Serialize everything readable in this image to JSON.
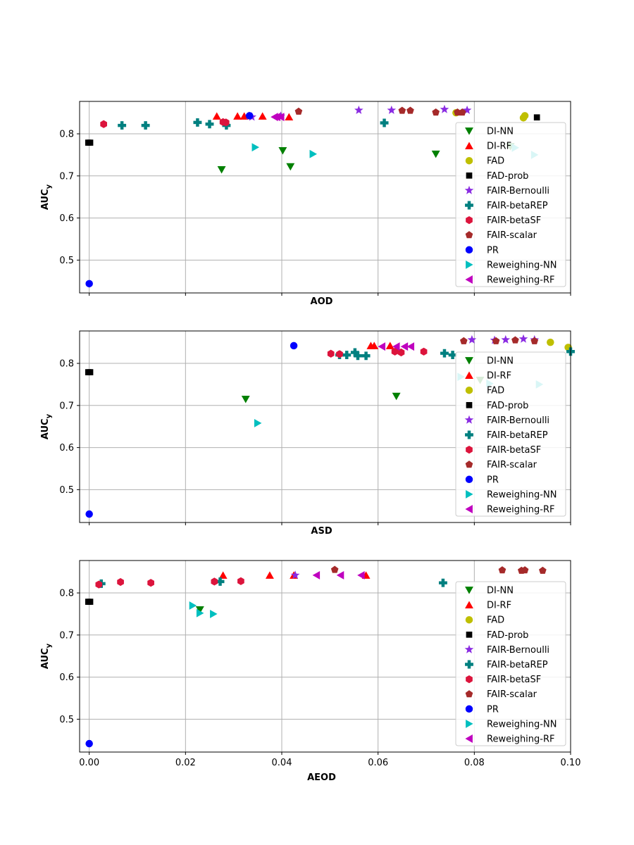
{
  "legend_entries": [
    {
      "name": "DI-NN",
      "color": "#008000",
      "marker": "triangle-down-icon"
    },
    {
      "name": "DI-RF",
      "color": "#ff0000",
      "marker": "triangle-up-icon"
    },
    {
      "name": "FAD",
      "color": "#bfbf00",
      "marker": "circle-icon"
    },
    {
      "name": "FAD-prob",
      "color": "#000000",
      "marker": "square-icon"
    },
    {
      "name": "FAIR-Bernoulli",
      "color": "#8a2be2",
      "marker": "star-icon"
    },
    {
      "name": "FAIR-betaREP",
      "color": "#008080",
      "marker": "plus-icon"
    },
    {
      "name": "FAIR-betaSF",
      "color": "#dc143c",
      "marker": "hexagon-icon"
    },
    {
      "name": "FAIR-scalar",
      "color": "#a52a2a",
      "marker": "pentagon-icon"
    },
    {
      "name": "PR",
      "color": "#0000ff",
      "marker": "circle-icon"
    },
    {
      "name": "Reweighing-NN",
      "color": "#00bfbf",
      "marker": "triangle-right-icon"
    },
    {
      "name": "Reweighing-RF",
      "color": "#bf00bf",
      "marker": "triangle-left-icon"
    }
  ],
  "chart_data": [
    {
      "type": "scatter",
      "title": "",
      "xlabel": "AOD",
      "ylabel": "AUC_y",
      "xlim": [
        -0.002,
        0.1
      ],
      "ylim": [
        0.422,
        0.877
      ],
      "xticks": [
        "0.00",
        "0.02",
        "0.04",
        "0.06",
        "0.08",
        "0.10"
      ],
      "xtick_labels_visible": false,
      "yticks": [
        "0.5",
        "0.6",
        "0.7",
        "0.8"
      ],
      "legend_position": "right",
      "series": [
        {
          "name": "DI-NN",
          "x": [
            0.0275,
            0.0402,
            0.0418,
            0.072,
            0.0875
          ],
          "y": [
            0.715,
            0.76,
            0.722,
            0.752,
            0.77
          ]
        },
        {
          "name": "DI-RF",
          "x": [
            0.0265,
            0.0308,
            0.0322,
            0.036,
            0.0415
          ],
          "y": [
            0.842,
            0.842,
            0.842,
            0.842,
            0.84
          ]
        },
        {
          "name": "FAD",
          "x": [
            0.0762,
            0.0902,
            0.0905
          ],
          "y": [
            0.85,
            0.838,
            0.843
          ]
        },
        {
          "name": "FAD-prob",
          "x": [
            -0.0002,
            0.0002,
            0.093
          ],
          "y": [
            0.779,
            0.779,
            0.839
          ]
        },
        {
          "name": "FAIR-Bernoulli",
          "x": [
            0.0332,
            0.0338,
            0.0398,
            0.056,
            0.0628,
            0.0738,
            0.0785
          ],
          "y": [
            0.842,
            0.84,
            0.842,
            0.856,
            0.856,
            0.858,
            0.856
          ]
        },
        {
          "name": "FAIR-betaREP",
          "x": [
            0.0068,
            0.0117,
            0.0225,
            0.025,
            0.0285,
            0.0613
          ],
          "y": [
            0.82,
            0.82,
            0.827,
            0.823,
            0.82,
            0.826
          ]
        },
        {
          "name": "FAIR-betaSF",
          "x": [
            0.003,
            0.0278,
            0.0284
          ],
          "y": [
            0.823,
            0.828,
            0.827
          ]
        },
        {
          "name": "FAIR-scalar",
          "x": [
            0.0435,
            0.065,
            0.0667,
            0.072,
            0.0765,
            0.0775
          ],
          "y": [
            0.853,
            0.855,
            0.855,
            0.851,
            0.851,
            0.851
          ]
        },
        {
          "name": "PR",
          "x": [
            0.0,
            0.0333
          ],
          "y": [
            0.444,
            0.843
          ]
        },
        {
          "name": "Reweighing-NN",
          "x": [
            0.0345,
            0.0465,
            0.0885,
            0.0925
          ],
          "y": [
            0.768,
            0.752,
            0.767,
            0.75
          ]
        },
        {
          "name": "Reweighing-RF",
          "x": [
            0.0385,
            0.039,
            0.0398
          ],
          "y": [
            0.84,
            0.84,
            0.84
          ]
        }
      ]
    },
    {
      "type": "scatter",
      "title": "",
      "xlabel": "ASD",
      "ylabel": "AUC_y",
      "xlim": [
        -0.002,
        0.1
      ],
      "ylim": [
        0.422,
        0.877
      ],
      "xticks": [
        "0.00",
        "0.02",
        "0.04",
        "0.06",
        "0.08",
        "0.10"
      ],
      "xtick_labels_visible": false,
      "yticks": [
        "0.5",
        "0.6",
        "0.7",
        "0.8"
      ],
      "legend_position": "right",
      "series": [
        {
          "name": "DI-NN",
          "x": [
            0.0325,
            0.0638,
            0.0812
          ],
          "y": [
            0.715,
            0.722,
            0.76
          ]
        },
        {
          "name": "DI-RF",
          "x": [
            0.0585,
            0.0592,
            0.0625
          ],
          "y": [
            0.842,
            0.842,
            0.842
          ]
        },
        {
          "name": "FAD",
          "x": [
            0.0958,
            0.0995
          ],
          "y": [
            0.85,
            0.838
          ]
        },
        {
          "name": "FAD-prob",
          "x": [
            -0.0002,
            0.0002
          ],
          "y": [
            0.779,
            0.779
          ]
        },
        {
          "name": "FAIR-Bernoulli",
          "x": [
            0.0795,
            0.0842,
            0.0865,
            0.0902,
            0.0925
          ],
          "y": [
            0.856,
            0.855,
            0.856,
            0.858,
            0.856
          ]
        },
        {
          "name": "FAIR-betaREP",
          "x": [
            0.052,
            0.0535,
            0.0552,
            0.0558,
            0.0575,
            0.0738,
            0.0755,
            0.1
          ],
          "y": [
            0.82,
            0.82,
            0.826,
            0.818,
            0.818,
            0.824,
            0.82,
            0.828
          ]
        },
        {
          "name": "FAIR-betaSF",
          "x": [
            0.0502,
            0.052,
            0.0635,
            0.0648,
            0.0695
          ],
          "y": [
            0.823,
            0.822,
            0.828,
            0.826,
            0.828
          ]
        },
        {
          "name": "FAIR-scalar",
          "x": [
            0.0778,
            0.0845,
            0.0885,
            0.0925
          ],
          "y": [
            0.853,
            0.853,
            0.855,
            0.853
          ]
        },
        {
          "name": "PR",
          "x": [
            0.0,
            0.0425
          ],
          "y": [
            0.442,
            0.842
          ]
        },
        {
          "name": "Reweighing-NN",
          "x": [
            0.035,
            0.0772,
            0.0832,
            0.0935
          ],
          "y": [
            0.658,
            0.768,
            0.752,
            0.75
          ]
        },
        {
          "name": "Reweighing-RF",
          "x": [
            0.0608,
            0.0638,
            0.0655,
            0.0668
          ],
          "y": [
            0.84,
            0.84,
            0.84,
            0.84
          ]
        }
      ]
    },
    {
      "type": "scatter",
      "title": "",
      "xlabel": "AEOD",
      "ylabel": "AUC_y",
      "xlim": [
        -0.002,
        0.1
      ],
      "ylim": [
        0.422,
        0.877
      ],
      "xticks": [
        "0.00",
        "0.02",
        "0.04",
        "0.06",
        "0.08",
        "0.10"
      ],
      "xtick_labels_visible": true,
      "yticks": [
        "0.5",
        "0.6",
        "0.7",
        "0.8"
      ],
      "legend_position": "right",
      "series": [
        {
          "name": "DI-NN",
          "x": [
            0.023
          ],
          "y": [
            0.76
          ]
        },
        {
          "name": "DI-RF",
          "x": [
            0.0278,
            0.0375,
            0.0425,
            0.0575
          ],
          "y": [
            0.842,
            0.842,
            0.842,
            0.842
          ]
        },
        {
          "name": "FAD",
          "x": [],
          "y": []
        },
        {
          "name": "FAD-prob",
          "x": [
            -0.0002,
            0.0002
          ],
          "y": [
            0.779,
            0.779
          ]
        },
        {
          "name": "FAIR-Bernoulli",
          "x": [
            0.0428
          ],
          "y": [
            0.842
          ]
        },
        {
          "name": "FAIR-betaREP",
          "x": [
            0.0025,
            0.0272,
            0.0735
          ],
          "y": [
            0.822,
            0.827,
            0.824
          ]
        },
        {
          "name": "FAIR-betaSF",
          "x": [
            0.002,
            0.0065,
            0.0128,
            0.026,
            0.0315
          ],
          "y": [
            0.82,
            0.826,
            0.824,
            0.827,
            0.828
          ]
        },
        {
          "name": "FAIR-scalar",
          "x": [
            0.051,
            0.0858,
            0.0898,
            0.0905,
            0.0942
          ],
          "y": [
            0.855,
            0.854,
            0.853,
            0.854,
            0.853
          ]
        },
        {
          "name": "PR",
          "x": [
            0.0
          ],
          "y": [
            0.442
          ]
        },
        {
          "name": "Reweighing-NN",
          "x": [
            0.0215,
            0.023,
            0.0258
          ],
          "y": [
            0.77,
            0.752,
            0.75
          ]
        },
        {
          "name": "Reweighing-RF",
          "x": [
            0.0472,
            0.0522,
            0.0565
          ],
          "y": [
            0.842,
            0.842,
            0.842
          ]
        }
      ]
    }
  ]
}
